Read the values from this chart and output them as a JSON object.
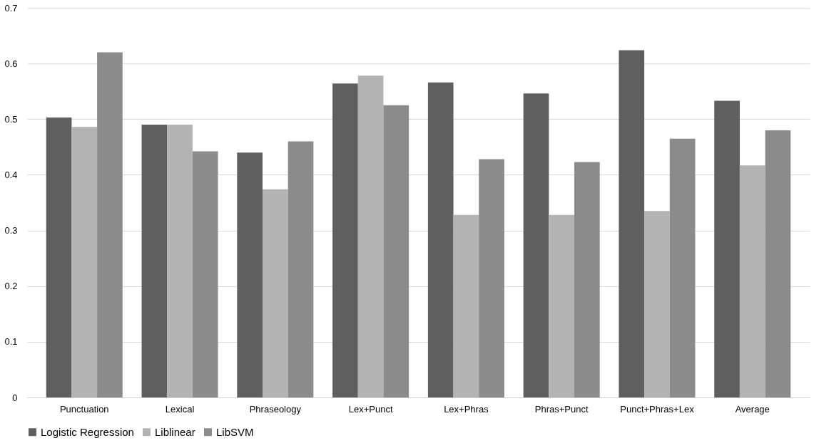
{
  "chart_data": {
    "type": "bar",
    "categories": [
      "Punctuation",
      "Lexical",
      "Phraseology",
      "Lex+Punct",
      "Lex+Phras",
      "Phras+Punct",
      "Punct+Phras+Lex",
      "Average"
    ],
    "series": [
      {
        "name": "Logistic Regression",
        "color": "#5f5f5f",
        "values": [
          0.503,
          0.49,
          0.44,
          0.564,
          0.566,
          0.546,
          0.624,
          0.533
        ]
      },
      {
        "name": "Liblinear",
        "color": "#b3b3b3",
        "values": [
          0.486,
          0.49,
          0.374,
          0.578,
          0.328,
          0.328,
          0.335,
          0.417
        ]
      },
      {
        "name": "LibSVM",
        "color": "#8b8b8b",
        "values": [
          0.62,
          0.442,
          0.46,
          0.525,
          0.428,
          0.423,
          0.465,
          0.48
        ]
      }
    ],
    "ylim": [
      0,
      0.7
    ],
    "yticks": [
      0,
      0.1,
      0.2,
      0.3,
      0.4,
      0.5,
      0.6,
      0.7
    ],
    "grid": "y",
    "legend": "bottom"
  }
}
